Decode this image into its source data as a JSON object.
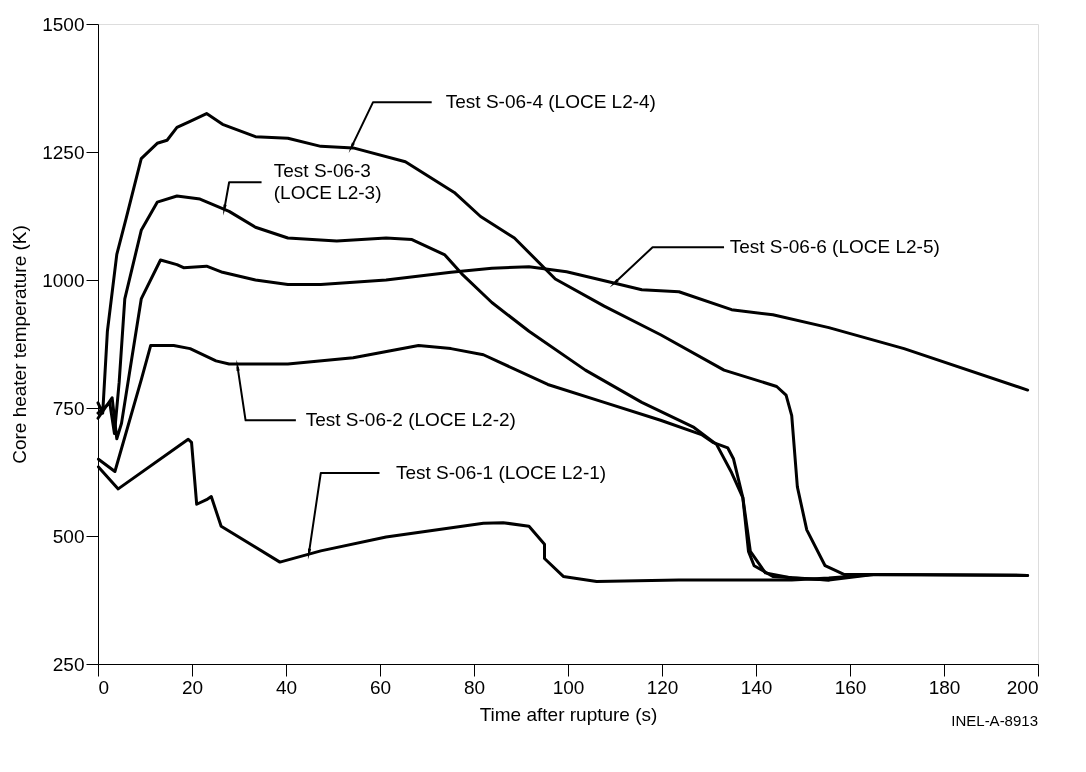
{
  "chart_data": {
    "type": "line",
    "xlabel": "Time after rupture (s)",
    "ylabel": "Core heater temperature (K)",
    "xlim": [
      0,
      200
    ],
    "xticks": [
      0,
      20,
      40,
      60,
      80,
      100,
      120,
      140,
      160,
      180,
      200
    ],
    "ylim": [
      250,
      1500
    ],
    "yticks": [
      250,
      500,
      750,
      1000,
      1250,
      1500
    ],
    "grid": false,
    "marker": "none",
    "line_style": "solid",
    "series": [
      {
        "color": "#000000",
        "x": [
          0,
          1,
          2,
          4,
          6.0,
          9.2,
          12.6,
          14.7,
          16.8,
          19.6,
          23.1,
          26.5,
          33.5,
          40.4,
          47.4,
          54.3,
          65.4,
          75.8,
          81.4,
          88.6,
          97.3,
          107.7,
          119.7,
          133.2,
          144.4,
          146.4,
          147.6,
          148.8,
          150.8,
          154.7,
          158.7,
          165,
          197.8
        ],
        "values": [
          760,
          740,
          900,
          1050,
          1121,
          1237,
          1267,
          1273,
          1298,
          1310,
          1325,
          1304,
          1280,
          1277,
          1261,
          1258,
          1231,
          1171,
          1124,
          1082,
          1002,
          949,
          893,
          824,
          792,
          775,
          735,
          596,
          512,
          442,
          425,
          425,
          423
        ]
      },
      {
        "color": "#000000",
        "x": [
          0,
          2.5,
          3.5,
          4.5,
          5.7,
          9.2,
          12.6,
          16.8,
          21.7,
          27.9,
          33.5,
          40.4,
          50.8,
          61.3,
          66.8,
          73.8,
          77.4,
          83.8,
          91.7,
          103.7,
          115.7,
          126.8,
          131.6,
          134.8,
          137.2,
          138.4,
          139.6,
          143.6,
          155.5,
          165
        ],
        "values": [
          740,
          760,
          700,
          800,
          963,
          1097,
          1152,
          1164,
          1158,
          1134,
          1103,
          1082,
          1076,
          1082,
          1079,
          1049,
          1012,
          956,
          900,
          824,
          761,
          712,
          679,
          624,
          575,
          470,
          442,
          421,
          414,
          425
        ]
      },
      {
        "color": "#000000",
        "x": [
          0,
          3,
          4,
          5,
          7.1,
          9.2,
          13.3,
          16.8,
          18.2,
          23.1,
          26.5,
          33.5,
          40.4,
          47.4,
          61.3,
          75.1,
          83.8,
          91.7,
          99.7,
          109.3,
          115.7,
          123.6,
          134.8,
          143.6,
          155.5,
          171.5,
          197.8
        ],
        "values": [
          730,
          770,
          690,
          720,
          842,
          963,
          1039,
          1030,
          1024,
          1027,
          1015,
          1000,
          991,
          991,
          1000,
          1015,
          1023,
          1026,
          1016,
          995,
          981,
          977,
          942,
          932,
          907,
          866,
          785
        ]
      },
      {
        "color": "#000000",
        "x": [
          0.1,
          3.6,
          9.2,
          11.2,
          16.1,
          19.6,
          25.1,
          27.9,
          40.4,
          54.3,
          68.2,
          75.1,
          82,
          95.7,
          107.7,
          119.7,
          128.4,
          130.8,
          134,
          135.2,
          137.2,
          138.8,
          142,
          147.6,
          155.5
        ],
        "values": [
          650,
          626,
          805,
          872,
          872,
          866,
          842,
          836,
          836,
          848,
          872,
          866,
          854,
          796,
          761,
          726,
          698,
          683,
          672,
          651,
          575,
          470,
          428,
          418,
          414
        ]
      },
      {
        "color": "#000000",
        "x": [
          0.1,
          4.3,
          19.2,
          19.9,
          21,
          23.1,
          24.1,
          26.2,
          38.7,
          47.4,
          61.3,
          82,
          86.2,
          91.7,
          95,
          95,
          99,
          106.1,
          123.6,
          147.6,
          155.5,
          165,
          197.8
        ],
        "values": [
          635,
          592,
          689,
          683,
          562,
          571,
          577,
          519,
          449,
          471,
          498,
          525,
          526,
          519,
          484,
          456,
          421,
          411,
          414,
          414,
          418,
          425,
          423
        ]
      }
    ],
    "annotations": [
      {
        "text": "Test S-06-4 (LOCE L2-4)",
        "x": 54,
        "y": 1261
      },
      {
        "text": "Test S-06-3 (LOCE L2-3)",
        "x": 26.9,
        "y": 1140
      },
      {
        "text": "Test S-06-6 (LOCE L2-5)",
        "x": 110,
        "y": 995
      },
      {
        "text": "Test S-06-2 (LOCE L2-2)",
        "x": 29.7,
        "y": 830
      },
      {
        "text": "Test S-06-1 (LOCE L2-1)",
        "x": 44.9,
        "y": 468
      },
      "INEL-A-8913"
    ]
  }
}
